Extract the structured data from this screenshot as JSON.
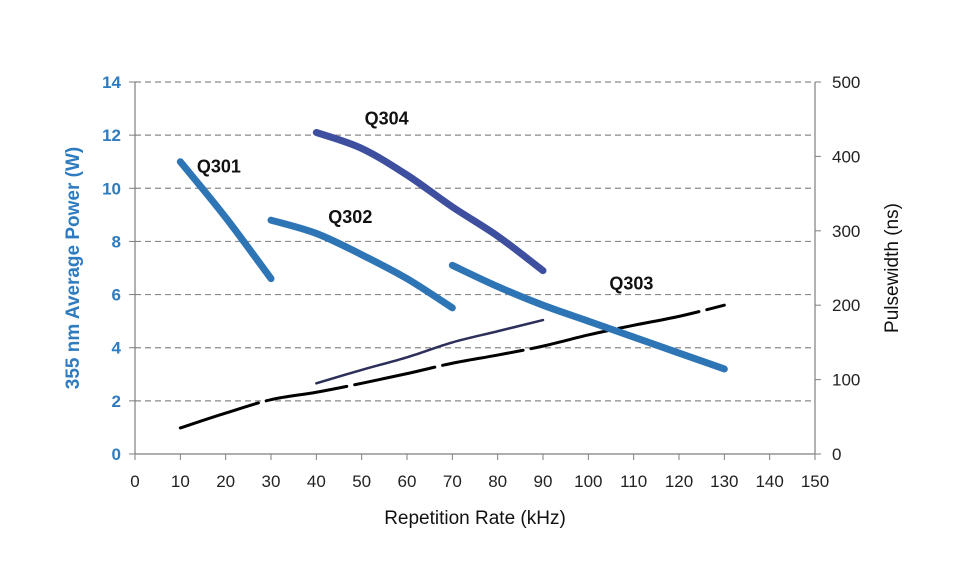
{
  "chart_data": {
    "type": "line",
    "title": "",
    "xlabel": "Repetition Rate (kHz)",
    "ylabel_left": "355 nm Average Power (W)",
    "ylabel_right": "Pulsewidth (ns)",
    "xlim": [
      0,
      150
    ],
    "ylim_left": [
      0,
      14
    ],
    "ylim_right": [
      0,
      500
    ],
    "xticks": [
      "0",
      "10",
      "20",
      "30",
      "40",
      "50",
      "60",
      "70",
      "80",
      "90",
      "100",
      "110",
      "120",
      "130",
      "140",
      "150"
    ],
    "yticks_left": [
      "0",
      "2",
      "4",
      "6",
      "8",
      "10",
      "12",
      "14"
    ],
    "yticks_right": [
      "0",
      "100",
      "200",
      "300",
      "400",
      "500"
    ],
    "grid": "horizontal dashed",
    "colors": {
      "left_axis": "#2e7bbf",
      "Q301": "#2e75b6",
      "Q302": "#2e75b6",
      "Q303": "#2e75b6",
      "Q304": "#3d4f9e",
      "pulsewidth_black": "#000000",
      "pulsewidth_navy": "#2b2f5a",
      "grid": "#8a8a8a",
      "axis": "#7f7f7f"
    },
    "series": [
      {
        "name": "Q301",
        "axis": "left",
        "x": [
          10,
          20,
          30
        ],
        "y": [
          11.0,
          8.9,
          6.6
        ]
      },
      {
        "name": "Q302",
        "axis": "left",
        "x": [
          30,
          40,
          50,
          60,
          70
        ],
        "y": [
          8.8,
          8.3,
          7.5,
          6.6,
          5.5
        ]
      },
      {
        "name": "Q303",
        "axis": "left",
        "x": [
          70,
          80,
          90,
          100,
          110,
          120,
          130
        ],
        "y": [
          7.1,
          6.3,
          5.6,
          5.0,
          4.4,
          3.8,
          3.2
        ]
      },
      {
        "name": "Q304",
        "axis": "left",
        "x": [
          40,
          50,
          60,
          70,
          80,
          90
        ],
        "y": [
          12.1,
          11.5,
          10.5,
          9.3,
          8.2,
          6.9
        ]
      }
    ],
    "pulsewidth_series": [
      {
        "axis": "right",
        "style": "dashed-black",
        "x": [
          10,
          20,
          30,
          40,
          50,
          60,
          70,
          80,
          90,
          100,
          110,
          120,
          130
        ],
        "y": [
          35,
          55,
          73,
          83,
          95,
          108,
          122,
          133,
          145,
          160,
          173,
          185,
          200
        ]
      },
      {
        "axis": "right",
        "style": "navy",
        "x": [
          40,
          50,
          60,
          70,
          80,
          90
        ],
        "y": [
          95,
          113,
          130,
          150,
          165,
          180
        ]
      }
    ],
    "labels": [
      {
        "text": "Q301",
        "x": 18.5,
        "y": 10.6
      },
      {
        "text": "Q302",
        "x": 47.5,
        "y": 8.7
      },
      {
        "text": "Q304",
        "x": 55.5,
        "y": 12.4
      },
      {
        "text": "Q303",
        "x": 109.5,
        "y": 6.2
      }
    ]
  }
}
